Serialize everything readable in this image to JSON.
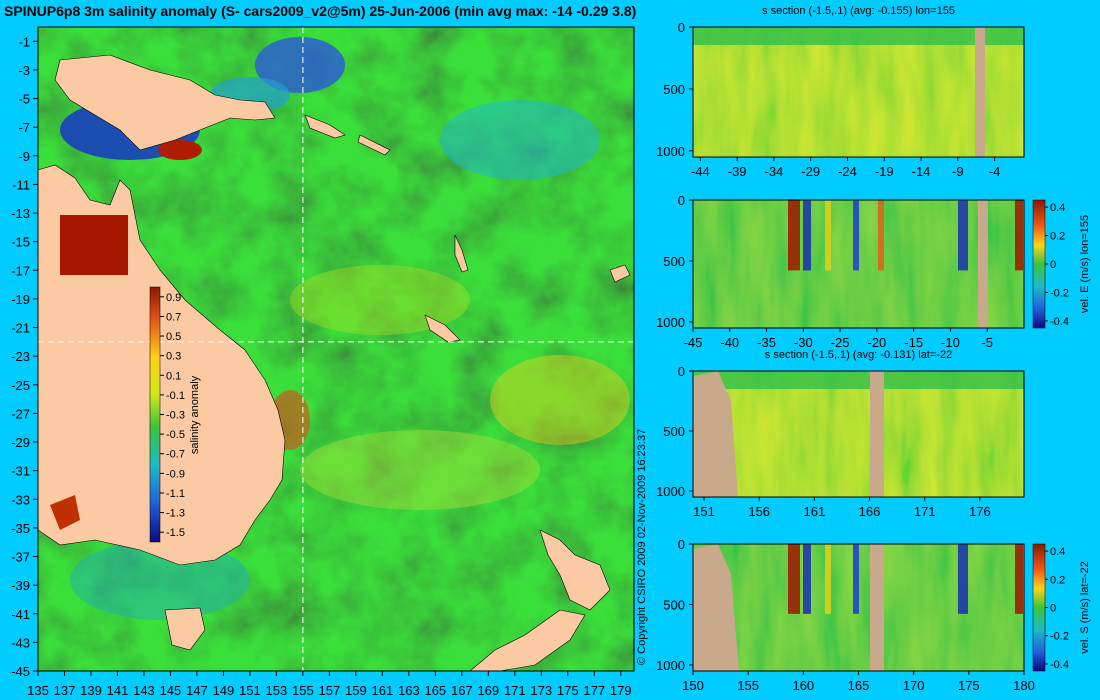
{
  "title": "SPINUP6p8 3m salinity anomaly (S- cars2009_v2@5m) 25-Jun-2006 (min avg max: -14 -0.29 3.8)",
  "copyright": "© Copyright CSIRO 2009   02-Nov-2009 16:23:37",
  "colors": {
    "background": "#00ccff",
    "land": "#fbc9a2",
    "section_land": "#c9a98c",
    "ocean_base": "#33b833",
    "crosshair": "#ffffff"
  },
  "chart_data": [
    {
      "id": "map",
      "type": "heatmap",
      "title": "SPINUP6p8 3m salinity anomaly (S- cars2009_v2@5m) 25-Jun-2006 (min avg max: -14 -0.29 3.8)",
      "xlim": [
        135,
        180
      ],
      "ylim": [
        -45,
        0
      ],
      "xticks": [
        "135",
        "137",
        "139",
        "141",
        "143",
        "145",
        "147",
        "149",
        "151",
        "153",
        "155",
        "157",
        "159",
        "161",
        "163",
        "165",
        "167",
        "169",
        "171",
        "173",
        "175",
        "177",
        "179"
      ],
      "yticks": [
        "-1",
        "-3",
        "-5",
        "-7",
        "-9",
        "-11",
        "-13",
        "-15",
        "-17",
        "-19",
        "-21",
        "-23",
        "-25",
        "-27",
        "-29",
        "-31",
        "-33",
        "-35",
        "-37",
        "-39",
        "-41",
        "-43",
        "-45"
      ],
      "crosshair": {
        "lon": 155,
        "lat": -22
      },
      "colorbar": {
        "label": "salinity anomaly",
        "ticks": [
          "0.9",
          "0.7",
          "0.5",
          "0.3",
          "0.1",
          "-0.1",
          "-0.3",
          "-0.5",
          "-0.7",
          "-0.9",
          "-1.1",
          "-1.3",
          "-1.5"
        ],
        "range": [
          -1.6,
          1.0
        ]
      }
    },
    {
      "id": "s-section-lon",
      "type": "heatmap",
      "title": "s section (-1.5,.1) (avg: -0.155) lon=155",
      "xticks": [
        "-44",
        "-39",
        "-34",
        "-29",
        "-24",
        "-19",
        "-14",
        "-9",
        "-4"
      ],
      "xlim": [
        -45,
        0
      ],
      "yticks": [
        "0",
        "500",
        "1000"
      ],
      "ylim": [
        0,
        1050
      ]
    },
    {
      "id": "vel-e-section",
      "type": "heatmap",
      "title": "",
      "xticks": [
        "-45",
        "-40",
        "-35",
        "-30",
        "-25",
        "-20",
        "-15",
        "-10",
        "-5"
      ],
      "xlim": [
        -45,
        0
      ],
      "yticks": [
        "0",
        "500",
        "1000"
      ],
      "ylim": [
        0,
        1050
      ],
      "colorbar": {
        "label": "vel. E (m/s) lon=155",
        "ticks": [
          "0.4",
          "0.2",
          "0",
          "-0.2",
          "-0.4"
        ],
        "range": [
          -0.45,
          0.45
        ]
      }
    },
    {
      "id": "s-section-lat",
      "type": "heatmap",
      "title": "s section (-1.5,.1) (avg: -0.131) lat=-22",
      "xticks": [
        "151",
        "156",
        "161",
        "166",
        "171",
        "176"
      ],
      "xlim": [
        150,
        180
      ],
      "yticks": [
        "0",
        "500",
        "1000"
      ],
      "ylim": [
        0,
        1050
      ]
    },
    {
      "id": "vel-s-section",
      "type": "heatmap",
      "title": "",
      "xticks": [
        "150",
        "155",
        "160",
        "165",
        "170",
        "175",
        "180"
      ],
      "xlim": [
        150,
        180
      ],
      "yticks": [
        "0",
        "500",
        "1000"
      ],
      "ylim": [
        0,
        1050
      ],
      "colorbar": {
        "label": "vel. S (m/s) lat=-22",
        "ticks": [
          "0.4",
          "0.2",
          "0",
          "-0.2",
          "-0.4"
        ],
        "range": [
          -0.45,
          0.45
        ]
      }
    }
  ]
}
